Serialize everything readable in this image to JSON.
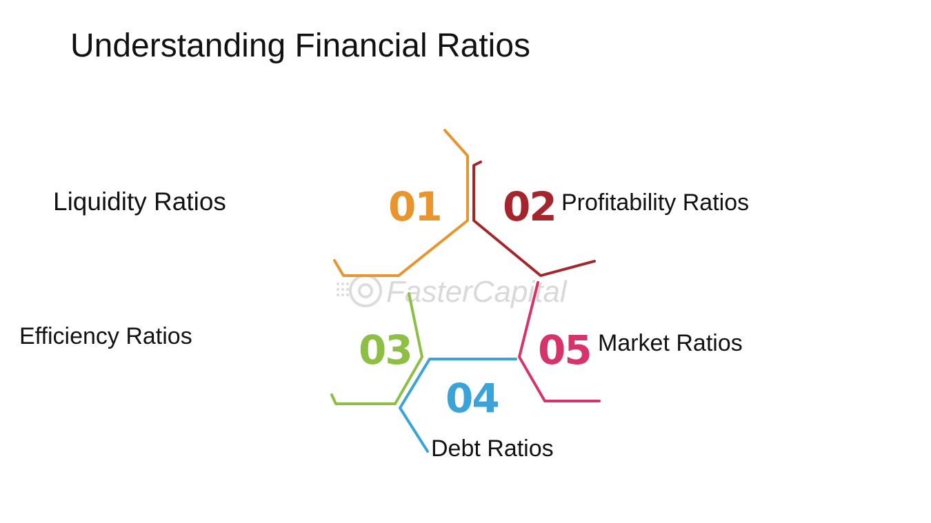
{
  "title": "Understanding Financial Ratios",
  "watermark": "FasterCapital",
  "colors": {
    "segment_01": "#E8952E",
    "segment_02": "#A4262C",
    "segment_03": "#8DBF45",
    "segment_04": "#3AA3D8",
    "segment_05": "#D6336C",
    "watermark": "#d9d9d9"
  },
  "segments": [
    {
      "number": "01",
      "label": "Liquidity Ratios"
    },
    {
      "number": "02",
      "label": "Profitability Ratios"
    },
    {
      "number": "03",
      "label": "Efficiency Ratios"
    },
    {
      "number": "04",
      "label": "Debt Ratios"
    },
    {
      "number": "05",
      "label": "Market Ratios"
    }
  ]
}
